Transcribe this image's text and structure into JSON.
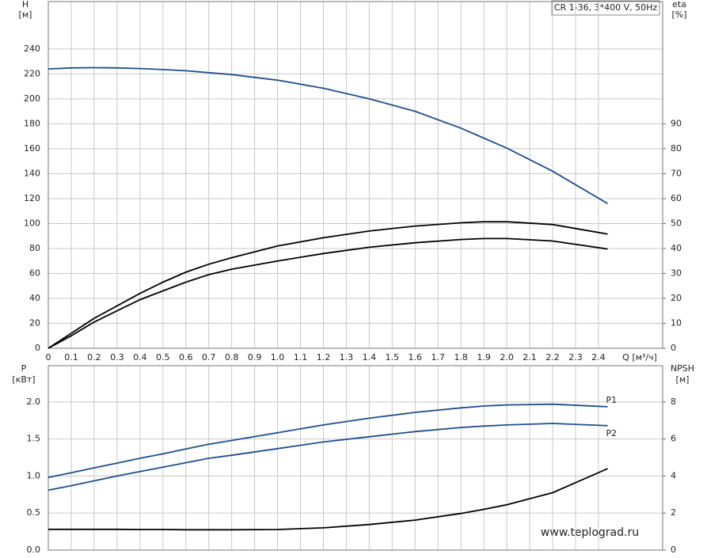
{
  "chart_data": [
    {
      "type": "line",
      "title": "CR 1-36, 3*400 V, 50Hz",
      "y_label": "H",
      "y_unit": "[м]",
      "y2_label": "eta",
      "y2_unit": "[%]",
      "x_label": "Q [м³/ч]",
      "xlim": [
        0,
        2.68
      ],
      "ylim": [
        0,
        278
      ],
      "y2lim": [
        0,
        139
      ],
      "xticks": [
        0,
        0.1,
        0.2,
        0.3,
        0.4,
        0.5,
        0.6,
        0.7,
        0.8,
        0.9,
        {
          "value": 1,
          "label": "1.0"
        },
        1.1,
        1.2,
        1.3,
        1.4,
        1.5,
        1.6,
        1.7,
        1.8,
        1.9,
        {
          "value": 2,
          "label": "2.0"
        },
        2.1,
        2.2,
        2.3,
        2.4
      ],
      "yticks": [
        0,
        20,
        40,
        60,
        80,
        100,
        120,
        140,
        160,
        180,
        200,
        220,
        240
      ],
      "y2ticks": [
        0,
        10,
        20,
        30,
        40,
        50,
        60,
        70,
        80,
        90
      ],
      "grid": true,
      "x": [
        0,
        0.1,
        0.2,
        0.3,
        0.4,
        0.5,
        0.6,
        0.7,
        0.8,
        1.0,
        1.2,
        1.4,
        1.6,
        1.8,
        1.9,
        2.0,
        2.2,
        2.44
      ],
      "series": [
        {
          "color": "#1f4e8c",
          "values": [
            224,
            224.8,
            225,
            224.8,
            224.3,
            223.5,
            222.5,
            221,
            219.5,
            215,
            208.5,
            200,
            190,
            176.5,
            168.5,
            160.5,
            142,
            116
          ]
        },
        {
          "color": "#000000",
          "axis": "y2",
          "values": [
            0,
            6,
            12,
            17,
            22,
            26.5,
            30.5,
            33.7,
            36.3,
            41,
            44.3,
            47,
            49,
            50.3,
            50.7,
            50.7,
            49.6,
            45.8
          ]
        },
        {
          "color": "#000000",
          "axis": "y2",
          "values": [
            0,
            5,
            10.5,
            15,
            19.5,
            23,
            26.5,
            29.5,
            31.7,
            35,
            38,
            40.5,
            42.3,
            43.6,
            44,
            44,
            43,
            39.8
          ]
        }
      ]
    },
    {
      "type": "line",
      "annotation": "www.teplograd.ru",
      "y_label": "P",
      "y_unit": "[кВт]",
      "y2_label": "NPSH",
      "y2_unit": "[м]",
      "xlim": [
        0,
        2.68
      ],
      "ylim": [
        0,
        2.49
      ],
      "y2lim": [
        0,
        9.96
      ],
      "yticks": [
        {
          "value": 0,
          "label": "0.0"
        },
        0.5,
        {
          "value": 1,
          "label": "1.0"
        },
        1.5,
        {
          "value": 2,
          "label": "2.0"
        }
      ],
      "y2ticks": [
        0,
        2,
        4,
        6,
        8
      ],
      "grid": true,
      "x": [
        0,
        0.1,
        0.2,
        0.3,
        0.4,
        0.5,
        0.6,
        0.7,
        0.8,
        1.0,
        1.2,
        1.4,
        1.6,
        1.8,
        1.9,
        2.0,
        2.2,
        2.44
      ],
      "series": [
        {
          "name": "P1",
          "color": "#1f4e8c",
          "values": [
            0.98,
            1.045,
            1.11,
            1.175,
            1.24,
            1.3,
            1.365,
            1.43,
            1.48,
            1.585,
            1.69,
            1.78,
            1.86,
            1.92,
            1.945,
            1.96,
            1.97,
            1.935
          ]
        },
        {
          "name": "P2",
          "color": "#1f4e8c",
          "values": [
            0.81,
            0.87,
            0.935,
            1.0,
            1.06,
            1.12,
            1.18,
            1.24,
            1.28,
            1.37,
            1.46,
            1.53,
            1.6,
            1.655,
            1.675,
            1.69,
            1.71,
            1.68
          ]
        },
        {
          "color": "#000000",
          "axis": "y2",
          "values": [
            1.12,
            1.12,
            1.12,
            1.12,
            1.11,
            1.11,
            1.1,
            1.1,
            1.1,
            1.11,
            1.2,
            1.38,
            1.62,
            1.98,
            2.2,
            2.45,
            3.1,
            4.4
          ]
        }
      ]
    }
  ]
}
